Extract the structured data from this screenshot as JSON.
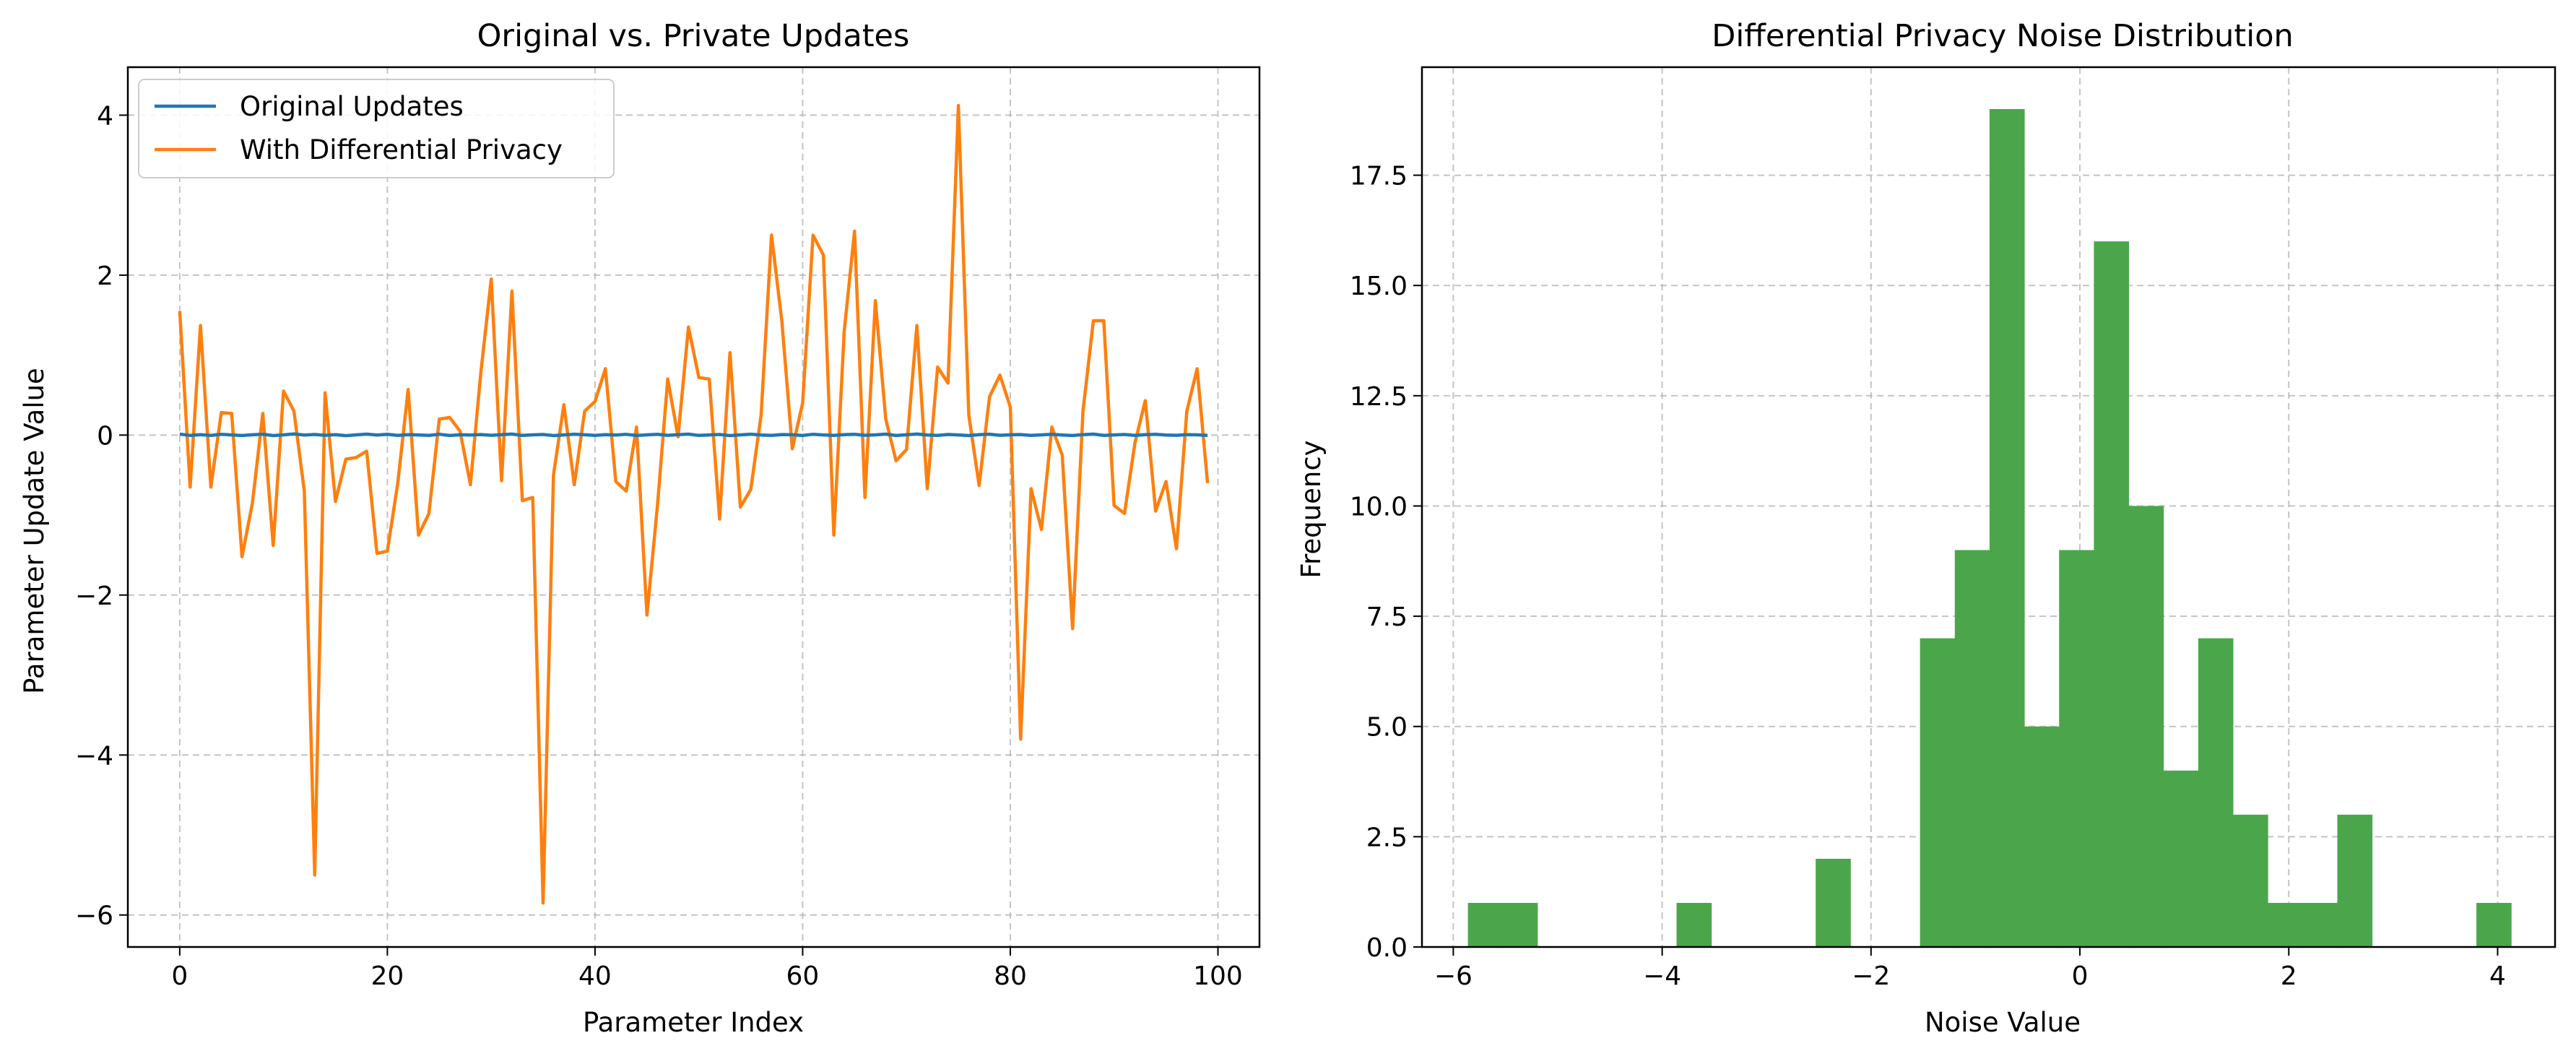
{
  "chart_data": [
    {
      "type": "line",
      "title": "Original vs. Private Updates",
      "xlabel": "Parameter Index",
      "ylabel": "Parameter Update Value",
      "xlim": [
        -5,
        104
      ],
      "ylim": [
        -6.4,
        4.6
      ],
      "xticks": [
        0,
        20,
        40,
        60,
        80,
        100
      ],
      "yticks": [
        -6,
        -4,
        -2,
        0,
        2,
        4
      ],
      "grid": true,
      "legend_position": "upper-left",
      "series": [
        {
          "name": "Original Updates",
          "color": "#1f77b4",
          "y": [
            0.012,
            -0.004,
            0.006,
            -0.003,
            0.009,
            0.002,
            -0.005,
            0.004,
            0.011,
            -0.006,
            0.003,
            0.014,
            0.001,
            0.008,
            -0.002,
            0.005,
            -0.007,
            0.003,
            0.012,
            0.001,
            0.009,
            -0.004,
            0.006,
            0.002,
            -0.003,
            0.01,
            -0.005,
            0.004,
            0.001,
            0.007,
            -0.002,
            0.005,
            0.013,
            -0.004,
            0.003,
            0.008,
            -0.006,
            0.002,
            0.011,
            0.004,
            -0.003,
            0.006,
            0.001,
            0.009,
            -0.005,
            0.003,
            0.01,
            -0.002,
            0.005,
            0.012,
            -0.004,
            0.002,
            0.008,
            -0.006,
            0.003,
            0.011,
            0.001,
            -0.003,
            0.007,
            0.004,
            -0.005,
            0.01,
            0.002,
            -0.004,
            0.006,
            0.009,
            -0.002,
            0.003,
            0.012,
            -0.005,
            0.004,
            0.013,
            0.001,
            -0.003,
            0.008,
            0.002,
            -0.006,
            0.005,
            0.011,
            -0.002,
            0.004,
            0.007,
            -0.004,
            0.003,
            0.009,
            0.001,
            -0.005,
            0.006,
            0.012,
            -0.003,
            0.002,
            0.008,
            -0.004,
            0.005,
            0.01,
            0.001,
            -0.002,
            0.006,
            0.003,
            -0.004
          ]
        },
        {
          "name": "With Differential Privacy",
          "color": "#ff7f0e",
          "y": [
            1.55,
            -0.65,
            1.37,
            -0.65,
            0.28,
            0.27,
            -1.52,
            -0.85,
            0.27,
            -1.38,
            0.55,
            0.3,
            -0.7,
            -5.5,
            0.53,
            -0.83,
            -0.3,
            -0.28,
            -0.2,
            -1.48,
            -1.45,
            -0.6,
            0.57,
            -1.25,
            -0.98,
            0.2,
            0.22,
            0.05,
            -0.62,
            0.78,
            1.95,
            -0.57,
            1.8,
            -0.82,
            -0.78,
            -5.85,
            -0.5,
            0.38,
            -0.62,
            0.3,
            0.42,
            0.83,
            -0.58,
            -0.7,
            0.1,
            -2.25,
            -0.9,
            0.7,
            -0.02,
            1.35,
            0.72,
            0.7,
            -1.05,
            1.03,
            -0.9,
            -0.68,
            0.25,
            2.5,
            1.42,
            -0.17,
            0.4,
            2.5,
            2.25,
            -1.25,
            1.3,
            2.55,
            -0.78,
            1.68,
            0.2,
            -0.32,
            -0.18,
            1.37,
            -0.67,
            0.85,
            0.65,
            4.12,
            0.25,
            -0.63,
            0.48,
            0.75,
            0.35,
            -3.8,
            -0.67,
            -1.18,
            0.1,
            -0.25,
            -2.42,
            0.3,
            1.43,
            1.43,
            -0.88,
            -0.98,
            -0.1,
            0.43,
            -0.95,
            -0.58,
            -1.42,
            0.3,
            0.83,
            -0.6
          ]
        }
      ]
    },
    {
      "type": "bar",
      "title": "Differential Privacy Noise Distribution",
      "xlabel": "Noise Value",
      "ylabel": "Frequency",
      "xlim": [
        -6.3,
        4.55
      ],
      "ylim": [
        0,
        19.95
      ],
      "xticks": [
        -6,
        -4,
        -2,
        0,
        2,
        4
      ],
      "yticks": [
        "0.0",
        "2.5",
        "5.0",
        "7.5",
        "10.0",
        "12.5",
        "15.0",
        "17.5"
      ],
      "grid": true,
      "color": "#4ba64b",
      "bin_width": 0.333,
      "bins": [
        {
          "x": -5.86,
          "count": 1
        },
        {
          "x": -5.527,
          "count": 1
        },
        {
          "x": -5.194,
          "count": 0
        },
        {
          "x": -4.861,
          "count": 0
        },
        {
          "x": -4.528,
          "count": 0
        },
        {
          "x": -4.195,
          "count": 0
        },
        {
          "x": -3.862,
          "count": 1
        },
        {
          "x": -3.529,
          "count": 0
        },
        {
          "x": -3.196,
          "count": 0
        },
        {
          "x": -2.863,
          "count": 0
        },
        {
          "x": -2.53,
          "count": 2
        },
        {
          "x": -2.197,
          "count": 0
        },
        {
          "x": -1.864,
          "count": 0
        },
        {
          "x": -1.531,
          "count": 7
        },
        {
          "x": -1.198,
          "count": 9
        },
        {
          "x": -0.865,
          "count": 19
        },
        {
          "x": -0.532,
          "count": 5
        },
        {
          "x": -0.199,
          "count": 9
        },
        {
          "x": 0.134,
          "count": 16
        },
        {
          "x": 0.467,
          "count": 10
        },
        {
          "x": 0.8,
          "count": 4
        },
        {
          "x": 1.133,
          "count": 7
        },
        {
          "x": 1.466,
          "count": 3
        },
        {
          "x": 1.799,
          "count": 1
        },
        {
          "x": 2.132,
          "count": 1
        },
        {
          "x": 2.465,
          "count": 3
        },
        {
          "x": 2.798,
          "count": 0
        },
        {
          "x": 3.131,
          "count": 0
        },
        {
          "x": 3.464,
          "count": 0
        },
        {
          "x": 3.797,
          "count": 1
        }
      ]
    }
  ]
}
